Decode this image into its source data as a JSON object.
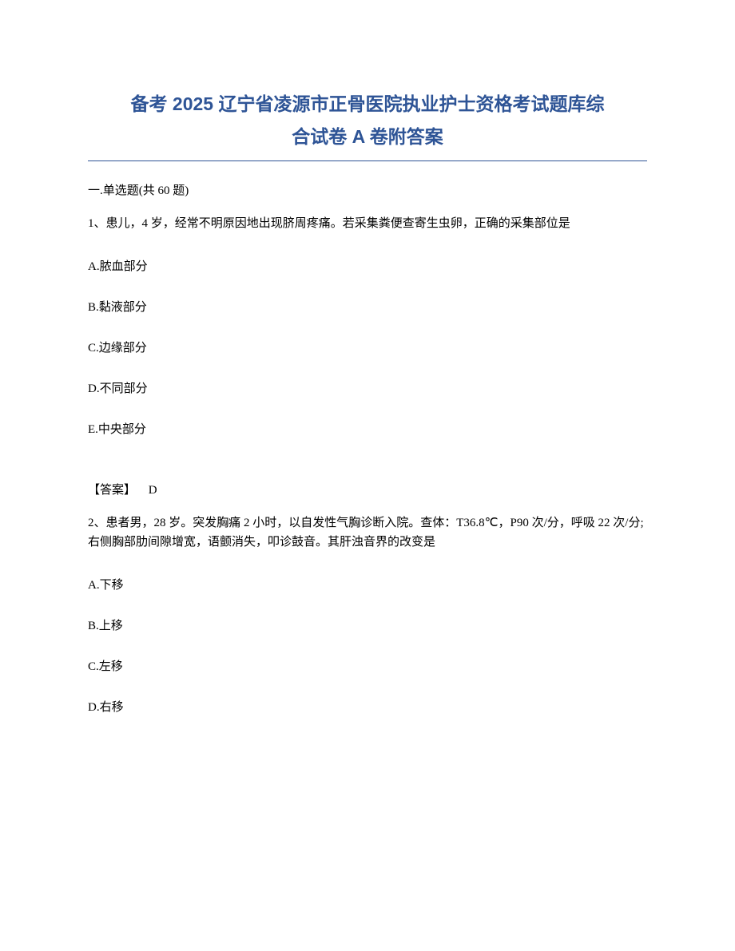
{
  "title": {
    "line1": "备考 2025 辽宁省凌源市正骨医院执业护士资格考试题库综",
    "line2": "合试卷 A 卷附答案",
    "color": "#2e5496",
    "fontsize": 23
  },
  "section_header": "一.单选题(共 60 题)",
  "question1": {
    "number": "1、",
    "text": "患儿，4 岁，经常不明原因地出现脐周疼痛。若采集粪便查寄生虫卵，正确的采集部位是",
    "options": {
      "A": "A.脓血部分",
      "B": "B.黏液部分",
      "C": "C.边缘部分",
      "D": "D.不同部分",
      "E": "E.中央部分"
    },
    "answer_label": "【答案】",
    "answer_value": "D"
  },
  "question2": {
    "number": "2、",
    "text": "患者男，28 岁。突发胸痛 2 小时，以自发性气胸诊断入院。查体：T36.8℃，P90 次/分，呼吸 22 次/分;右侧胸部肋间隙增宽，语颤消失，叩诊鼓音。其肝浊音界的改变是",
    "options": {
      "A": "A.下移",
      "B": "B.上移",
      "C": "C.左移",
      "D": "D.右移"
    }
  },
  "colors": {
    "title_color": "#2e5496",
    "text_color": "#000000",
    "background": "#ffffff",
    "divider_color": "#2e5496"
  },
  "typography": {
    "title_fontsize": 23,
    "body_fontsize": 15,
    "title_font": "Microsoft YaHei",
    "body_font": "SimSun"
  }
}
